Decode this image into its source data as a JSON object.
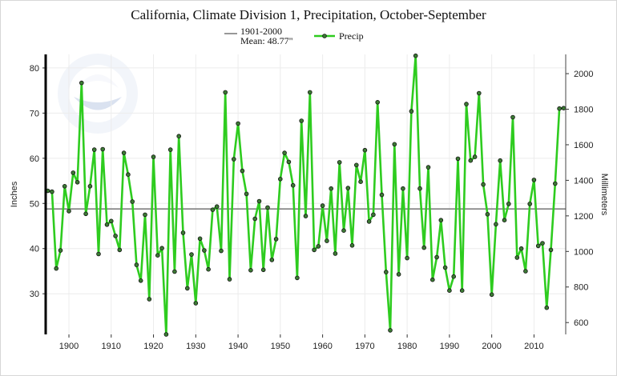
{
  "chart_data": {
    "type": "line",
    "title": "California, Climate Division 1, Precipitation, October-September",
    "ylabel": "Inches",
    "y2label": "Millimeters",
    "ylim": [
      21,
      83
    ],
    "xlim": [
      1894.5,
      2017.5
    ],
    "x_ticks": [
      1900,
      1910,
      1920,
      1930,
      1940,
      1950,
      1960,
      1970,
      1980,
      1990,
      2000,
      2010
    ],
    "y_ticks": [
      30,
      40,
      50,
      60,
      70,
      80
    ],
    "y2_ticks": [
      600,
      800,
      1000,
      1200,
      1400,
      1600,
      1800,
      2000
    ],
    "grid": true,
    "legend_position": "top-center",
    "reference_line": {
      "label_line1": "1901-2000",
      "label_line2": "Mean: 48.77\"",
      "value": 48.77,
      "color": "#7f7f7f"
    },
    "series": [
      {
        "name": "Precip",
        "color": "#2ecc1f",
        "marker_fill": "#3c7a34",
        "x": [
          1895,
          1896,
          1897,
          1898,
          1899,
          1900,
          1901,
          1902,
          1903,
          1904,
          1905,
          1906,
          1907,
          1908,
          1909,
          1910,
          1911,
          1912,
          1913,
          1914,
          1915,
          1916,
          1917,
          1918,
          1919,
          1920,
          1921,
          1922,
          1923,
          1924,
          1925,
          1926,
          1927,
          1928,
          1929,
          1930,
          1931,
          1932,
          1933,
          1934,
          1935,
          1936,
          1937,
          1938,
          1939,
          1940,
          1941,
          1942,
          1943,
          1944,
          1945,
          1946,
          1947,
          1948,
          1949,
          1950,
          1951,
          1952,
          1953,
          1954,
          1955,
          1956,
          1957,
          1958,
          1959,
          1960,
          1961,
          1962,
          1963,
          1964,
          1965,
          1966,
          1967,
          1968,
          1969,
          1970,
          1971,
          1972,
          1973,
          1974,
          1975,
          1976,
          1977,
          1978,
          1979,
          1980,
          1981,
          1982,
          1983,
          1984,
          1985,
          1986,
          1987,
          1988,
          1989,
          1990,
          1991,
          1992,
          1993,
          1994,
          1995,
          1996,
          1997,
          1998,
          1999,
          2000,
          2001,
          2002,
          2003,
          2004,
          2005,
          2006,
          2007,
          2008,
          2009,
          2010,
          2011,
          2012,
          2013,
          2014,
          2015,
          2016,
          2017
        ],
        "values": [
          52.8,
          52.6,
          35.6,
          39.6,
          53.8,
          48.3,
          56.8,
          54.7,
          76.7,
          47.7,
          53.8,
          61.9,
          38.8,
          62.0,
          45.3,
          46.1,
          42.8,
          39.7,
          61.2,
          56.4,
          50.4,
          36.4,
          32.9,
          47.5,
          28.8,
          60.3,
          38.5,
          40.1,
          21.0,
          61.9,
          34.9,
          64.9,
          43.5,
          31.2,
          38.7,
          27.9,
          42.2,
          39.6,
          35.4,
          48.6,
          49.3,
          39.5,
          74.6,
          33.2,
          59.8,
          67.7,
          57.2,
          52.1,
          35.2,
          46.6,
          50.5,
          35.3,
          49.1,
          37.5,
          42.1,
          55.4,
          61.2,
          59.2,
          54.0,
          33.5,
          68.3,
          47.2,
          74.6,
          39.7,
          40.5,
          49.5,
          41.7,
          53.3,
          38.9,
          59.1,
          44.0,
          53.4,
          40.7,
          58.5,
          54.8,
          61.8,
          46.0,
          47.5,
          72.4,
          51.9,
          34.8,
          21.9,
          63.1,
          34.3,
          53.3,
          37.9,
          70.4,
          82.7,
          53.3,
          40.2,
          58.0,
          33.1,
          38.1,
          46.3,
          35.8,
          30.7,
          33.8,
          59.9,
          30.7,
          72.0,
          59.5,
          60.3,
          74.4,
          54.2,
          47.6,
          29.8,
          45.4,
          59.5,
          46.3,
          49.9,
          69.1,
          38.0,
          40.0,
          35.0,
          49.9,
          55.2,
          40.6,
          41.2,
          26.9,
          39.7,
          54.4,
          71.0,
          71.1
        ]
      }
    ]
  }
}
